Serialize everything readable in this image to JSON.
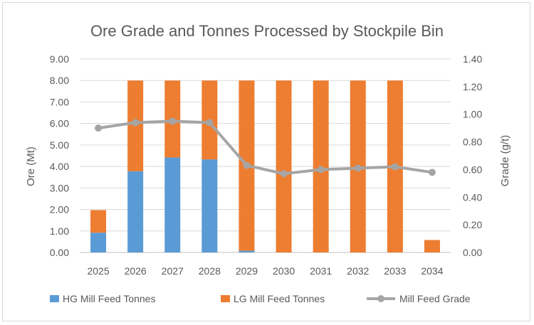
{
  "chart_data": {
    "type": "bar",
    "title": "Ore Grade and Tonnes Processed by Stockpile Bin",
    "categories": [
      "2025",
      "2026",
      "2027",
      "2028",
      "2029",
      "2030",
      "2031",
      "2032",
      "2033",
      "2034"
    ],
    "ylabel": "Ore (Mt)",
    "y2label": "Grade (g/t)",
    "ylim": [
      0,
      9
    ],
    "y2lim": [
      0,
      1.4
    ],
    "yticks": [
      "0.00",
      "1.00",
      "2.00",
      "3.00",
      "4.00",
      "5.00",
      "6.00",
      "7.00",
      "8.00",
      "9.00"
    ],
    "y2ticks": [
      "0.00",
      "0.20",
      "0.40",
      "0.60",
      "0.80",
      "1.00",
      "1.20",
      "1.40"
    ],
    "grid": true,
    "legend_position": "bottom",
    "series": [
      {
        "name": "HG Mill Feed Tonnes",
        "kind": "bar",
        "stack": "ore",
        "axis": "left",
        "color": "#5b9bd5",
        "values": [
          0.92,
          3.78,
          4.42,
          4.33,
          0.08,
          0,
          0,
          0,
          0,
          0
        ]
      },
      {
        "name": "LG Mill Feed Tonnes",
        "kind": "bar",
        "stack": "ore",
        "axis": "left",
        "color": "#ed7d31",
        "values": [
          1.05,
          4.22,
          3.58,
          3.67,
          7.92,
          8.0,
          8.0,
          8.0,
          8.0,
          0.58
        ]
      },
      {
        "name": "Mill Feed Grade",
        "kind": "line",
        "axis": "right",
        "color": "#a5a5a5",
        "values": [
          0.9,
          0.94,
          0.95,
          0.94,
          0.63,
          0.57,
          0.6,
          0.61,
          0.62,
          0.58
        ]
      }
    ]
  }
}
